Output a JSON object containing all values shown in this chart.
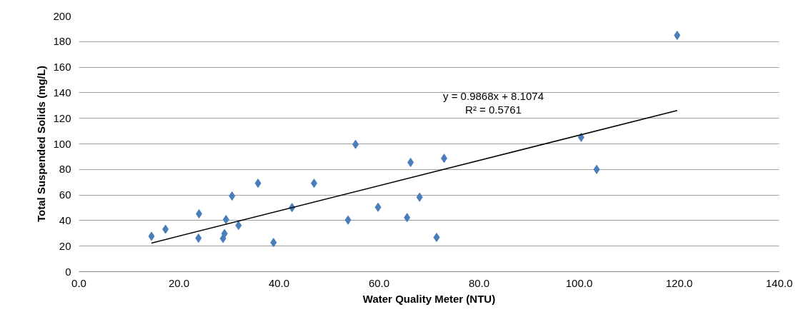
{
  "chart_data": {
    "type": "scatter",
    "xlabel": "Water Quality Meter (NTU)",
    "ylabel": "Total Suspended Solids (mg/L)",
    "xlim": [
      0,
      140
    ],
    "ylim": [
      0,
      200
    ],
    "xticks": [
      {
        "value": 0,
        "label": "0.0"
      },
      {
        "value": 20,
        "label": "20.0"
      },
      {
        "value": 40,
        "label": "40.0"
      },
      {
        "value": 60,
        "label": "60.0"
      },
      {
        "value": 80,
        "label": "80.0"
      },
      {
        "value": 100,
        "label": "100.0"
      },
      {
        "value": 120,
        "label": "120.0"
      },
      {
        "value": 140,
        "label": "140.0"
      }
    ],
    "yticks": [
      0,
      20,
      40,
      60,
      80,
      100,
      120,
      140,
      160,
      180,
      200
    ],
    "grid": "y",
    "marker": "diamond",
    "annotations": [
      "y = 0.9868x + 8.1074",
      "R² = 0.5761"
    ],
    "series": [
      {
        "color": "#4a7ebb",
        "x": [
          14.5,
          17.3,
          23.9,
          24.0,
          28.8,
          29.1,
          29.4,
          30.6,
          31.9,
          35.8,
          38.9,
          42.6,
          47.0,
          53.8,
          55.3,
          59.8,
          65.6,
          66.3,
          68.1,
          71.5,
          73.0,
          100.4,
          103.5,
          119.6
        ],
        "values": [
          27.7,
          33.2,
          26.2,
          45.3,
          26.0,
          29.8,
          40.8,
          59.2,
          36.2,
          69.2,
          22.8,
          50.2,
          69.2,
          40.4,
          99.6,
          50.4,
          42.3,
          85.5,
          58.3,
          26.8,
          88.7,
          105.1,
          80.0,
          184.9
        ]
      },
      {
        "type": "line",
        "marker": "none",
        "color": "#000000",
        "x": [
          14.5,
          119.6
        ],
        "values": [
          22.4,
          126.1
        ]
      }
    ]
  }
}
